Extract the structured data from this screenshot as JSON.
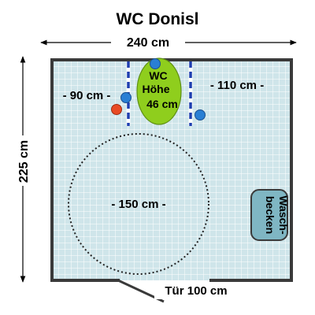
{
  "title": "WC Donisl",
  "dimensions": {
    "width_label": "240 cm",
    "height_label": "225 cm",
    "left_space_label": "- 90 cm -",
    "right_space_label": "- 110 cm -",
    "turning_circle_label": "- 150 cm -",
    "door_label": "Tür 100 cm"
  },
  "toilet": {
    "line1": "WC",
    "line2": "Höhe",
    "line3": "46 cm",
    "fill_color": "#8fce1d"
  },
  "sink": {
    "line1": "Wasch-",
    "line2": "becken"
  },
  "colors": {
    "tile_fill": "#cfe5ea",
    "grid_line": "#ffffff",
    "wall": "#3a3a3a",
    "grab_bar": "#1e3fb0",
    "button_blue": "#2a7fd4",
    "button_red": "#e84a24",
    "sink_fill": "#7fb6c3"
  }
}
